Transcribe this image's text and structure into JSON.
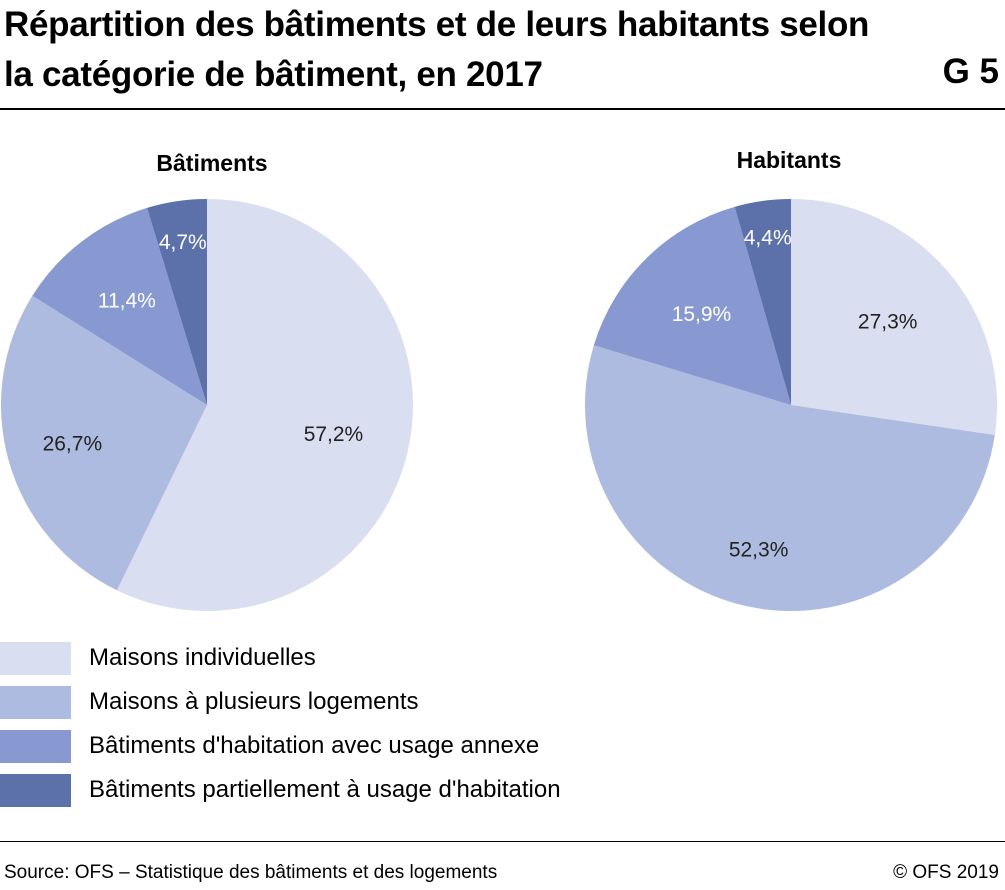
{
  "title": "Répartition des bâtiments et de leurs habitants selon la catégorie de bâtiment, en 2017",
  "figure_id": "G 5",
  "source": "Source: OFS – Statistique des bâtiments et des logements",
  "copyright": "© OFS 2019",
  "chart_data": [
    {
      "type": "pie",
      "title": "Bâtiments",
      "categories": [
        "Maisons individuelles",
        "Maisons à plusieurs logements",
        "Bâtiments d'habitation avec usage annexe",
        "Bâtiments partiellement à usage d'habitation"
      ],
      "values": [
        57.2,
        26.7,
        11.4,
        4.7
      ],
      "labels": [
        "57,2%",
        "26,7%",
        "11,4%",
        "4,7%"
      ]
    },
    {
      "type": "pie",
      "title": "Habitants",
      "categories": [
        "Maisons individuelles",
        "Maisons à plusieurs logements",
        "Bâtiments d'habitation avec usage annexe",
        "Bâtiments partiellement à usage d'habitation"
      ],
      "values": [
        27.3,
        52.3,
        15.9,
        4.4
      ],
      "labels": [
        "27,3%",
        "52,3%",
        "15,9%",
        "4,4%"
      ]
    }
  ],
  "legend": [
    {
      "label": "Maisons individuelles",
      "color": "#d9def0"
    },
    {
      "label": "Maisons à plusieurs logements",
      "color": "#aebbe0"
    },
    {
      "label": "Bâtiments d'habitation avec usage annexe",
      "color": "#8799d0"
    },
    {
      "label": "Bâtiments partiellement à usage d'habitation",
      "color": "#5c70aa"
    }
  ],
  "label_colors": [
    "#222222",
    "#222222",
    "#ffffff",
    "#ffffff"
  ]
}
